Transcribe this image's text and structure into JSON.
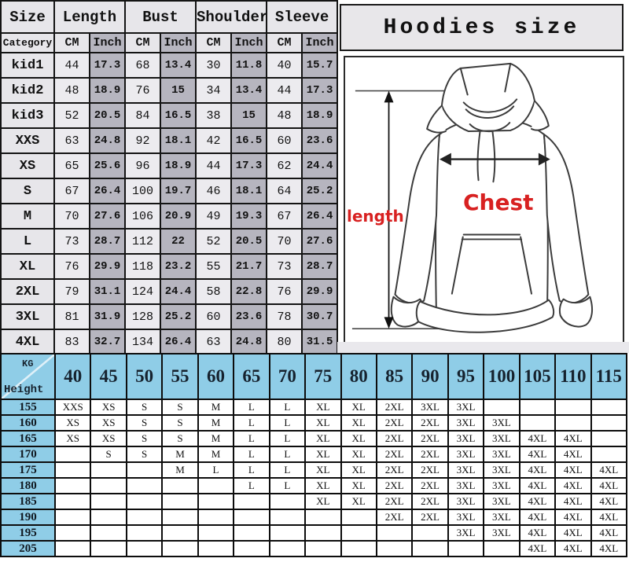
{
  "colors": {
    "border": "#141414",
    "gray_header": "#e7e6ea",
    "gray_cm_cell": "#ecebef",
    "gray_inch_cell": "#b6b5bf",
    "blue_header": "#8fcde7",
    "red_label": "#d82121"
  },
  "title_panel": {
    "title": "Hoodies size"
  },
  "diagram": {
    "length_label": "length",
    "chest_label": "Chest"
  },
  "size_table": {
    "group_headers": [
      "Size",
      "Length",
      "Bust",
      "Shoulder",
      "Sleeve"
    ],
    "category_label": "Category",
    "unit_cm": "CM",
    "unit_inch": "Inch",
    "rows": [
      {
        "size": "kid1",
        "values": [
          "44",
          "17.3",
          "68",
          "13.4",
          "30",
          "11.8",
          "40",
          "15.7"
        ]
      },
      {
        "size": "kid2",
        "values": [
          "48",
          "18.9",
          "76",
          "15",
          "34",
          "13.4",
          "44",
          "17.3"
        ]
      },
      {
        "size": "kid3",
        "values": [
          "52",
          "20.5",
          "84",
          "16.5",
          "38",
          "15",
          "48",
          "18.9"
        ]
      },
      {
        "size": "XXS",
        "values": [
          "63",
          "24.8",
          "92",
          "18.1",
          "42",
          "16.5",
          "60",
          "23.6"
        ]
      },
      {
        "size": "XS",
        "values": [
          "65",
          "25.6",
          "96",
          "18.9",
          "44",
          "17.3",
          "62",
          "24.4"
        ]
      },
      {
        "size": "S",
        "values": [
          "67",
          "26.4",
          "100",
          "19.7",
          "46",
          "18.1",
          "64",
          "25.2"
        ]
      },
      {
        "size": "M",
        "values": [
          "70",
          "27.6",
          "106",
          "20.9",
          "49",
          "19.3",
          "67",
          "26.4"
        ]
      },
      {
        "size": "L",
        "values": [
          "73",
          "28.7",
          "112",
          "22",
          "52",
          "20.5",
          "70",
          "27.6"
        ]
      },
      {
        "size": "XL",
        "values": [
          "76",
          "29.9",
          "118",
          "23.2",
          "55",
          "21.7",
          "73",
          "28.7"
        ]
      },
      {
        "size": "2XL",
        "values": [
          "79",
          "31.1",
          "124",
          "24.4",
          "58",
          "22.8",
          "76",
          "29.9"
        ]
      },
      {
        "size": "3XL",
        "values": [
          "81",
          "31.9",
          "128",
          "25.2",
          "60",
          "23.6",
          "78",
          "30.7"
        ]
      },
      {
        "size": "4XL",
        "values": [
          "83",
          "32.7",
          "134",
          "26.4",
          "63",
          "24.8",
          "80",
          "31.5"
        ]
      }
    ]
  },
  "fit_table": {
    "corner_top": "KG",
    "corner_bottom": "Height",
    "weights": [
      "40",
      "45",
      "50",
      "55",
      "60",
      "65",
      "70",
      "75",
      "80",
      "85",
      "90",
      "95",
      "100",
      "105",
      "110",
      "115"
    ],
    "rows": [
      {
        "height": "155",
        "cells": [
          "XXS",
          "XS",
          "S",
          "S",
          "M",
          "L",
          "L",
          "XL",
          "XL",
          "2XL",
          "3XL",
          "3XL",
          "",
          "",
          "",
          ""
        ]
      },
      {
        "height": "160",
        "cells": [
          "XS",
          "XS",
          "S",
          "S",
          "M",
          "L",
          "L",
          "XL",
          "XL",
          "2XL",
          "2XL",
          "3XL",
          "3XL",
          "",
          "",
          ""
        ]
      },
      {
        "height": "165",
        "cells": [
          "XS",
          "XS",
          "S",
          "S",
          "M",
          "L",
          "L",
          "XL",
          "XL",
          "2XL",
          "2XL",
          "3XL",
          "3XL",
          "4XL",
          "4XL",
          ""
        ]
      },
      {
        "height": "170",
        "cells": [
          "",
          "S",
          "S",
          "M",
          "M",
          "L",
          "L",
          "XL",
          "XL",
          "2XL",
          "2XL",
          "3XL",
          "3XL",
          "4XL",
          "4XL",
          ""
        ]
      },
      {
        "height": "175",
        "cells": [
          "",
          "",
          "",
          "M",
          "L",
          "L",
          "L",
          "XL",
          "XL",
          "2XL",
          "2XL",
          "3XL",
          "3XL",
          "4XL",
          "4XL",
          "4XL"
        ]
      },
      {
        "height": "180",
        "cells": [
          "",
          "",
          "",
          "",
          "",
          "L",
          "L",
          "XL",
          "XL",
          "2XL",
          "2XL",
          "3XL",
          "3XL",
          "4XL",
          "4XL",
          "4XL"
        ]
      },
      {
        "height": "185",
        "cells": [
          "",
          "",
          "",
          "",
          "",
          "",
          "",
          "XL",
          "XL",
          "2XL",
          "2XL",
          "3XL",
          "3XL",
          "4XL",
          "4XL",
          "4XL"
        ]
      },
      {
        "height": "190",
        "cells": [
          "",
          "",
          "",
          "",
          "",
          "",
          "",
          "",
          "",
          "2XL",
          "2XL",
          "3XL",
          "3XL",
          "4XL",
          "4XL",
          "4XL"
        ]
      },
      {
        "height": "195",
        "cells": [
          "",
          "",
          "",
          "",
          "",
          "",
          "",
          "",
          "",
          "",
          "",
          "3XL",
          "3XL",
          "4XL",
          "4XL",
          "4XL"
        ]
      },
      {
        "height": "205",
        "cells": [
          "",
          "",
          "",
          "",
          "",
          "",
          "",
          "",
          "",
          "",
          "",
          "",
          "",
          "4XL",
          "4XL",
          "4XL"
        ]
      }
    ]
  }
}
